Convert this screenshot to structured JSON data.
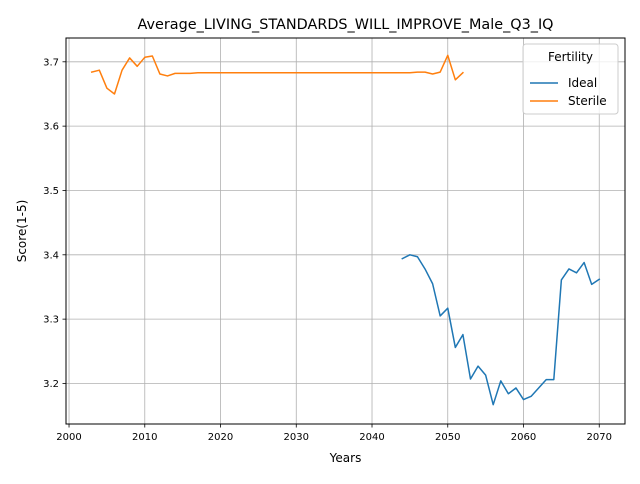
{
  "chart_data": {
    "type": "line",
    "title": "Average_LIVING_STANDARDS_WILL_IMPROVE_Male_Q3_IQ",
    "xlabel": "Years",
    "ylabel": "Score(1-5)",
    "xlim": [
      1999.6,
      2073.4
    ],
    "ylim": [
      3.137,
      3.737
    ],
    "xticks": [
      2000,
      2010,
      2020,
      2030,
      2040,
      2050,
      2060,
      2070
    ],
    "xtick_labels": [
      "2000",
      "2010",
      "2020",
      "2030",
      "2040",
      "2050",
      "2060",
      "2070"
    ],
    "yticks": [
      3.2,
      3.3,
      3.4,
      3.5,
      3.6,
      3.7
    ],
    "ytick_labels": [
      "3.2",
      "3.3",
      "3.4",
      "3.5",
      "3.6",
      "3.7"
    ],
    "grid": true,
    "legend": {
      "title": "Fertility",
      "position": "top-right"
    },
    "series": [
      {
        "name": "Ideal",
        "color": "#1f77b4",
        "x": [
          2044,
          2045,
          2046,
          2047,
          2048,
          2049,
          2050,
          2051,
          2052,
          2053,
          2054,
          2055,
          2056,
          2057,
          2058,
          2059,
          2060,
          2061,
          2062,
          2063,
          2064,
          2065,
          2066,
          2067,
          2068,
          2069,
          2070
        ],
        "y": [
          3.394,
          3.4,
          3.397,
          3.378,
          3.355,
          3.305,
          3.317,
          3.256,
          3.276,
          3.207,
          3.227,
          3.213,
          3.167,
          3.204,
          3.184,
          3.193,
          3.175,
          3.18,
          3.193,
          3.206,
          3.206,
          3.361,
          3.378,
          3.372,
          3.388,
          3.354,
          3.362
        ]
      },
      {
        "name": "Sterile",
        "color": "#ff7f0e",
        "x": [
          2003,
          2004,
          2005,
          2006,
          2007,
          2008,
          2009,
          2010,
          2011,
          2012,
          2013,
          2014,
          2015,
          2016,
          2017,
          2018,
          2019,
          2020,
          2021,
          2022,
          2023,
          2024,
          2025,
          2026,
          2027,
          2028,
          2029,
          2030,
          2031,
          2032,
          2033,
          2034,
          2035,
          2036,
          2037,
          2038,
          2039,
          2040,
          2041,
          2042,
          2043,
          2044,
          2045,
          2046,
          2047,
          2048,
          2049,
          2050,
          2051,
          2052
        ],
        "y": [
          3.684,
          3.687,
          3.659,
          3.65,
          3.687,
          3.706,
          3.693,
          3.707,
          3.709,
          3.681,
          3.678,
          3.682,
          3.682,
          3.682,
          3.683,
          3.683,
          3.683,
          3.683,
          3.683,
          3.683,
          3.683,
          3.683,
          3.683,
          3.683,
          3.683,
          3.683,
          3.683,
          3.683,
          3.683,
          3.683,
          3.683,
          3.683,
          3.683,
          3.683,
          3.683,
          3.683,
          3.683,
          3.683,
          3.683,
          3.683,
          3.683,
          3.683,
          3.683,
          3.684,
          3.684,
          3.681,
          3.684,
          3.71,
          3.672,
          3.683
        ]
      }
    ]
  }
}
